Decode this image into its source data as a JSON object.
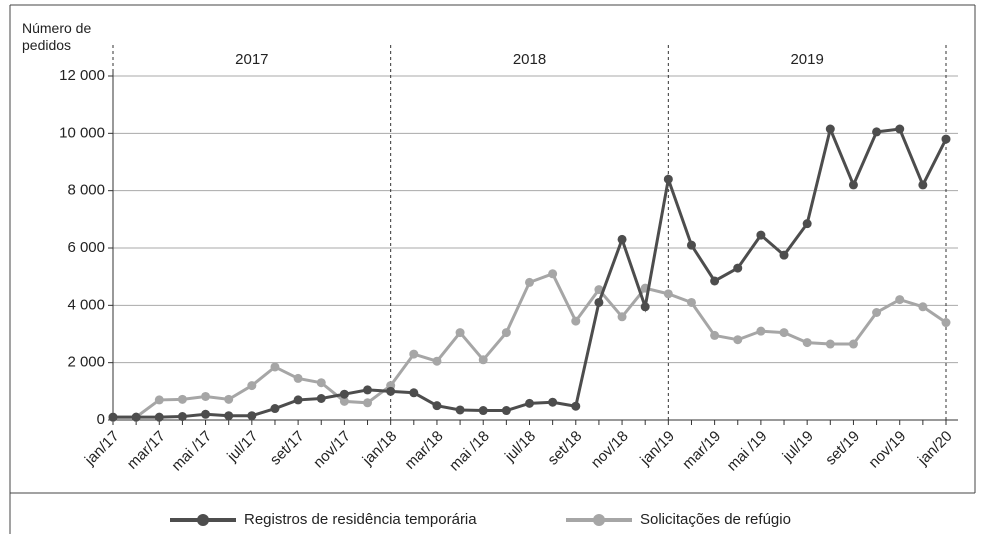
{
  "chart_data": {
    "type": "line",
    "ylabel": "Número de pedidos",
    "year_labels": [
      "2017",
      "2018",
      "2019"
    ],
    "categories": [
      "jan/17",
      null,
      "mar/17",
      null,
      "mai /17",
      null,
      "jul/17",
      null,
      "set/17",
      null,
      "nov/17",
      null,
      "jan/18",
      null,
      "mar/18",
      null,
      "mai /18",
      null,
      "jul/18",
      null,
      "set/18",
      null,
      "nov/18",
      null,
      "jan/19",
      null,
      "mar/19",
      null,
      "mai /19",
      null,
      "jul/19",
      null,
      "set/19",
      null,
      "nov/19",
      null,
      "jan/20"
    ],
    "series": [
      {
        "name": "Registros de residência temporária",
        "color": "#4d4d4d",
        "values": [
          100,
          100,
          100,
          120,
          200,
          150,
          150,
          400,
          700,
          750,
          900,
          1050,
          1000,
          950,
          500,
          350,
          330,
          330,
          580,
          620,
          480,
          4100,
          6300,
          3950,
          8400,
          6100,
          4850,
          5300,
          6450,
          5750,
          6850,
          10150,
          8200,
          10050,
          10150,
          8200,
          9800
        ]
      },
      {
        "name": "Solicitações de refúgio",
        "color": "#a6a6a6",
        "values": [
          100,
          100,
          700,
          720,
          820,
          720,
          1200,
          1850,
          1450,
          1300,
          650,
          600,
          1200,
          2300,
          2050,
          3050,
          2100,
          3050,
          4800,
          5100,
          3450,
          4550,
          3600,
          4600,
          4400,
          4100,
          2950,
          2800,
          3100,
          3050,
          2700,
          2650,
          2650,
          3750,
          4200,
          3950,
          3400
        ]
      }
    ],
    "ylim": [
      0,
      12000
    ],
    "yticks": [
      0,
      {
        "value": 2000,
        "label": "2 000"
      },
      {
        "value": 4000,
        "label": "4 000"
      },
      {
        "value": 6000,
        "label": "6 000"
      },
      {
        "value": 8000,
        "label": "8 000"
      },
      {
        "value": 10000,
        "label": "10 000"
      },
      {
        "value": 12000,
        "label": "12 000"
      }
    ],
    "grid": true,
    "legend": "bottom"
  }
}
